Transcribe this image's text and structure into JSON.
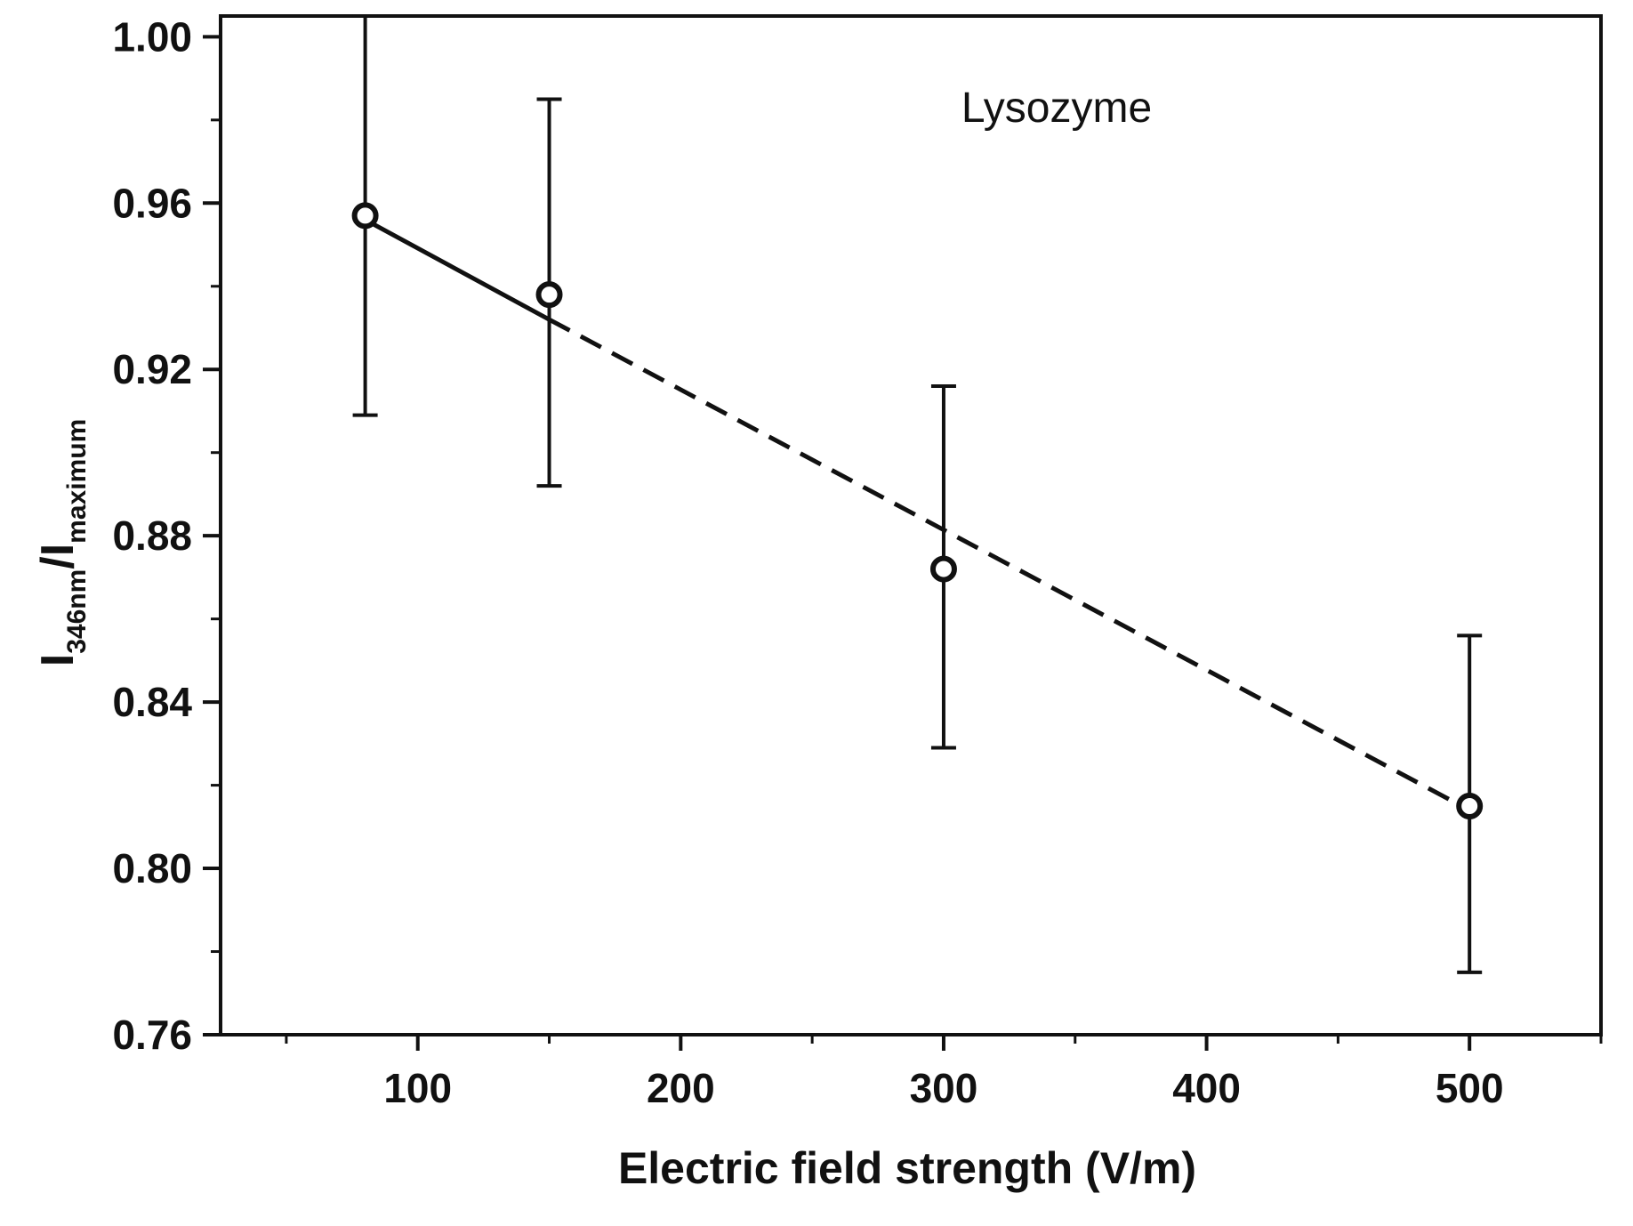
{
  "chart_data": {
    "type": "scatter",
    "title": "",
    "annotation": "Lysozyme",
    "xlabel": "Electric field strength (V/m)",
    "ylabel": {
      "main": "I",
      "sub1": "346nm",
      "slash": "/I",
      "sub2": "maximum"
    },
    "xlim": [
      25,
      550
    ],
    "ylim": [
      0.76,
      1.005
    ],
    "xticks": [
      100,
      200,
      300,
      400,
      500
    ],
    "xtick_labels": [
      "100",
      "200",
      "300",
      "400",
      "500"
    ],
    "yticks": [
      0.76,
      0.8,
      0.84,
      0.88,
      0.92,
      0.96,
      1.0
    ],
    "ytick_labels": [
      "0.76",
      "0.80",
      "0.84",
      "0.88",
      "0.92",
      "0.96",
      "1.00"
    ],
    "grid": false,
    "series": [
      {
        "marker": "open-circle",
        "x": [
          80,
          150,
          300,
          500
        ],
        "y": [
          0.957,
          0.938,
          0.872,
          0.815
        ],
        "yerr_low": [
          0.909,
          0.892,
          0.829,
          0.775
        ],
        "yerr_high": [
          1.005,
          0.985,
          0.916,
          0.856
        ]
      }
    ],
    "fit_line": {
      "solid": {
        "x": [
          80,
          150
        ],
        "y": [
          0.956,
          0.932
        ]
      },
      "dashed": {
        "x": [
          150,
          500
        ],
        "y": [
          0.932,
          0.814
        ]
      }
    },
    "colors": {
      "ink": "#111111",
      "background": "#ffffff"
    }
  }
}
